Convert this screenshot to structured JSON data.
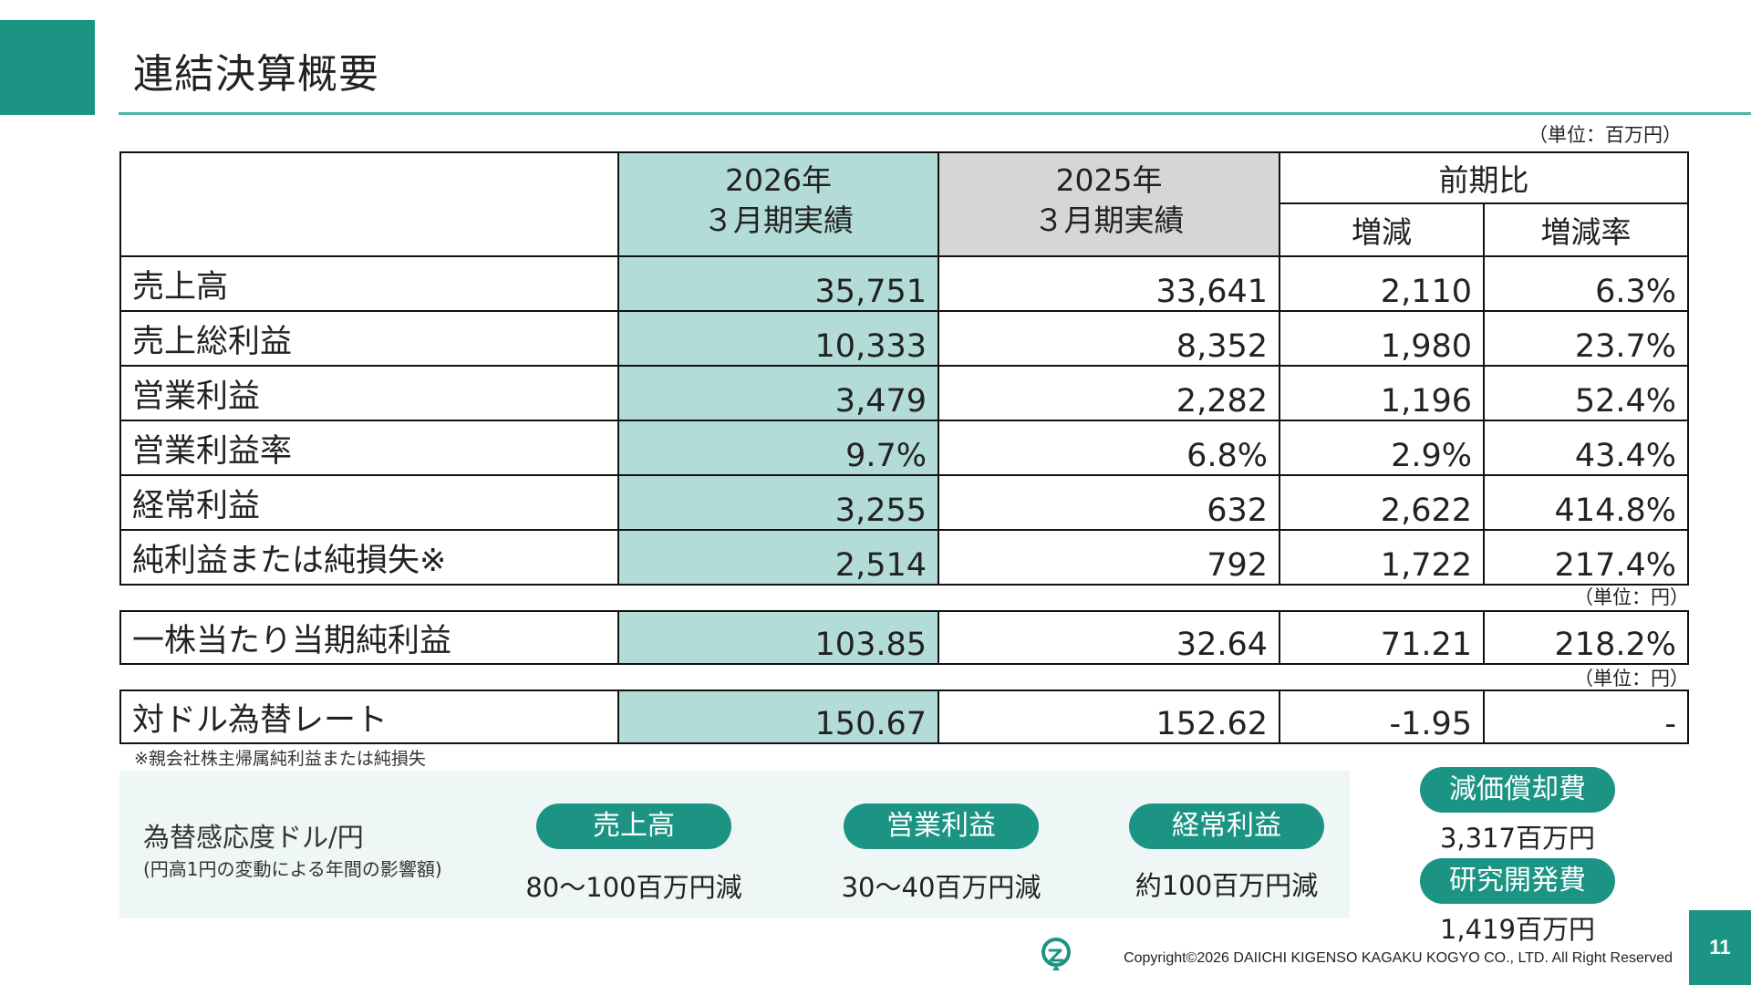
{
  "title": "連結決算概要",
  "units": {
    "million_yen": "（単位：百万円）",
    "yen_1": "（単位：円）",
    "yen_2": "（単位：円）"
  },
  "table_header": {
    "current_year": "2026年",
    "current_sub": "３月期実績",
    "prev_year": "2025年",
    "prev_sub": "３月期実績",
    "comparison": "前期比",
    "change": "増減",
    "change_rate": "増減率"
  },
  "rows": [
    {
      "label": "売上高",
      "current": "35,751",
      "prev": "33,641",
      "change": "2,110",
      "rate": "6.3%"
    },
    {
      "label": "売上総利益",
      "current": "10,333",
      "prev": "8,352",
      "change": "1,980",
      "rate": "23.7%"
    },
    {
      "label": "営業利益",
      "current": "3,479",
      "prev": "2,282",
      "change": "1,196",
      "rate": "52.4%"
    },
    {
      "label": "営業利益率",
      "current": "9.7%",
      "prev": "6.8%",
      "change": "2.9%",
      "rate": "43.4%"
    },
    {
      "label": "経常利益",
      "current": "3,255",
      "prev": "632",
      "change": "2,622",
      "rate": "414.8%"
    },
    {
      "label": "純利益または純損失※",
      "current": "2,514",
      "prev": "792",
      "change": "1,722",
      "rate": "217.4%"
    }
  ],
  "eps": {
    "label": "一株当たり当期純利益",
    "current": "103.85",
    "prev": "32.64",
    "change": "71.21",
    "rate": "218.2%"
  },
  "fx": {
    "label": "対ドル為替レート",
    "current": "150.67",
    "prev": "152.62",
    "change": "-1.95",
    "rate": "-"
  },
  "footnote": "※親会社株主帰属純利益または純損失",
  "sensitivity": {
    "title": "為替感応度ドル/円",
    "subtitle": "(円高1円の変動による年間の影響額)",
    "items": [
      {
        "label": "売上高",
        "value": "80～100百万円減"
      },
      {
        "label": "営業利益",
        "value": "30～40百万円減"
      },
      {
        "label": "経常利益",
        "value": "約100百万円減"
      }
    ]
  },
  "other": [
    {
      "label": "減価償却費",
      "value": "3,317百万円"
    },
    {
      "label": "研究開発費",
      "value": "1,419百万円"
    }
  ],
  "footer": {
    "copyright": "Copyright©2026 DAIICHI KIGENSO KAGAKU KOGYO CO., LTD. All Right Reserved",
    "page": "11"
  },
  "colors": {
    "accent": "#1c9484",
    "current_col": "#b3dcd8",
    "prev_col": "#d6d6d6",
    "panel": "#eef7f6"
  }
}
